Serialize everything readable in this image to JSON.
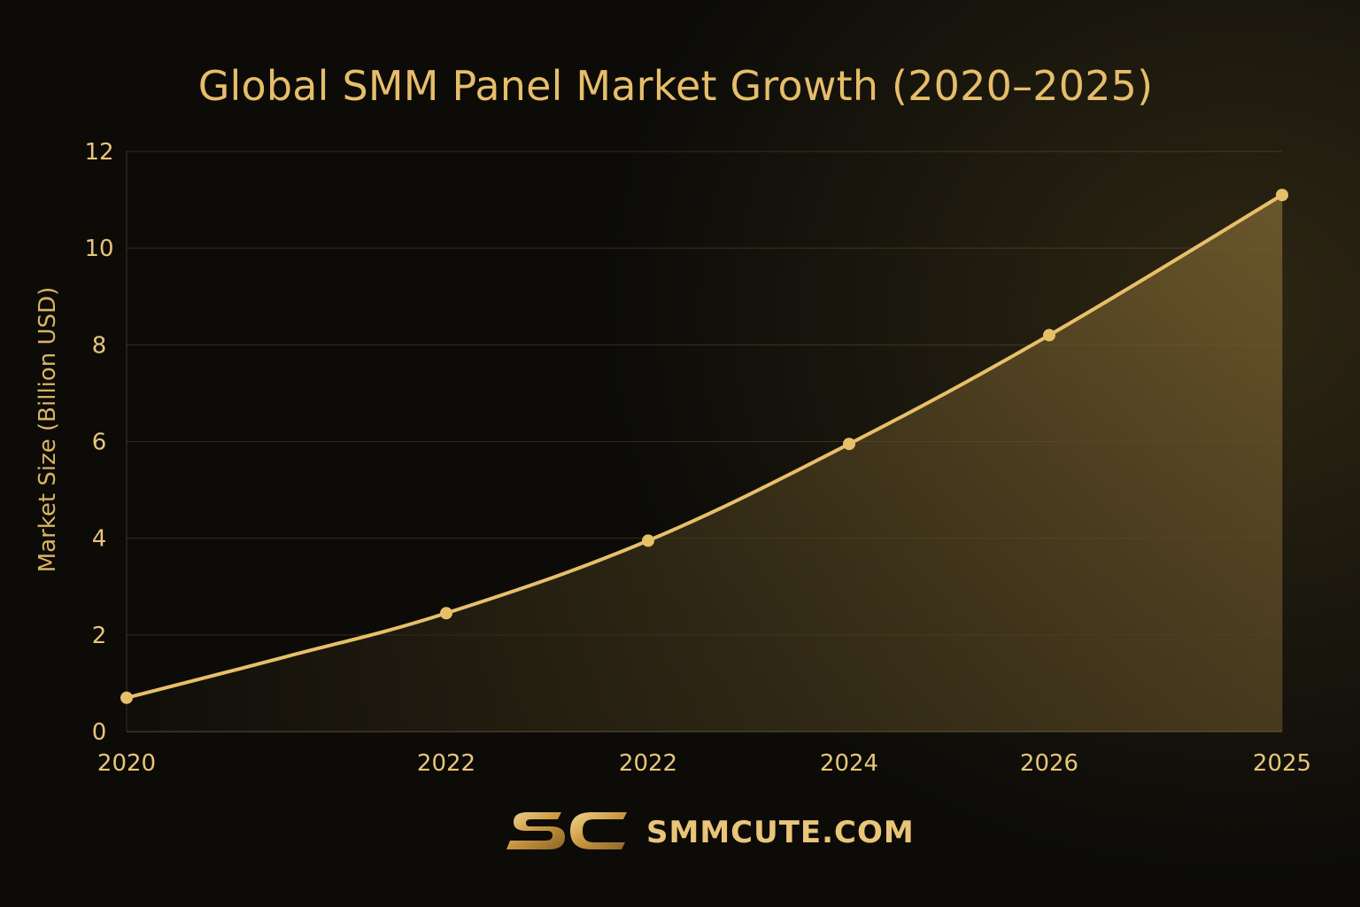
{
  "chart_data": {
    "type": "area",
    "title": "Global SMM Panel Market Growth (2020–2025)",
    "xlabel": "",
    "ylabel": "Market Size (Billion USD)",
    "ylim": [
      0,
      12
    ],
    "yticks": [
      "0",
      "2",
      "4",
      "6",
      "8",
      "10",
      "12"
    ],
    "categories": [
      "2020",
      "",
      "2022",
      "2022",
      "2024",
      "2026",
      "2025"
    ],
    "values": [
      0.7,
      1.55,
      2.45,
      3.95,
      5.95,
      8.2,
      11.1
    ],
    "markers": [
      true,
      false,
      true,
      true,
      true,
      true,
      true
    ],
    "grid": true,
    "line_color": "#e8bf69",
    "fill_color": "#6e5a2c"
  },
  "brand": {
    "logo": "SC",
    "name": "SMMCUTE.COM"
  }
}
